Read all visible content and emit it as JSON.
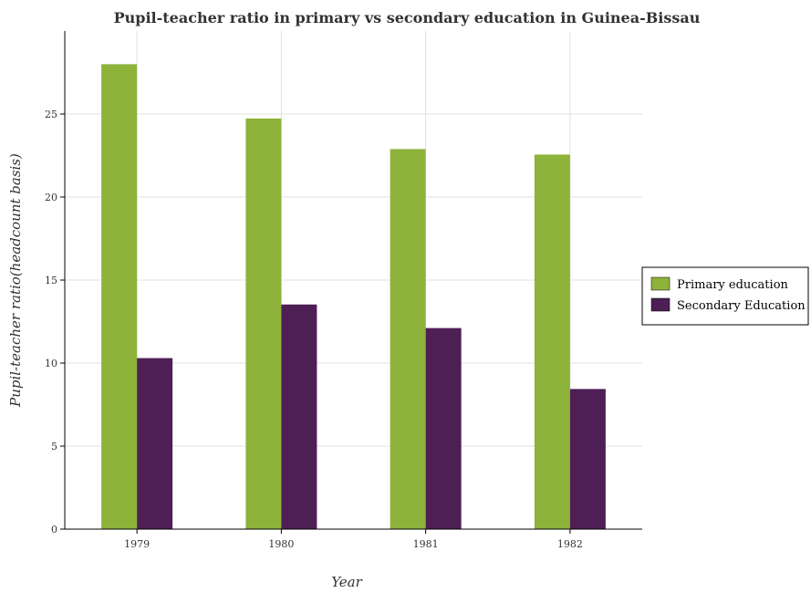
{
  "chart_data": {
    "type": "bar",
    "title": "Pupil-teacher ratio in primary vs secondary education in Guinea-Bissau",
    "xlabel": "Year",
    "ylabel": "Pupil-teacher ratio(headcount basis)",
    "categories": [
      "1979",
      "1980",
      "1981",
      "1982"
    ],
    "series": [
      {
        "name": "Primary education",
        "values": [
          28.0,
          24.73,
          22.89,
          22.56
        ],
        "color": "#8db33a"
      },
      {
        "name": "Secondary Education",
        "values": [
          10.3,
          13.53,
          12.11,
          8.44
        ],
        "color": "#4d1f55"
      }
    ],
    "ylim": [
      0,
      30
    ],
    "yticks": [
      0,
      5,
      10,
      15,
      20,
      25
    ],
    "grid": true,
    "legend": "right"
  }
}
